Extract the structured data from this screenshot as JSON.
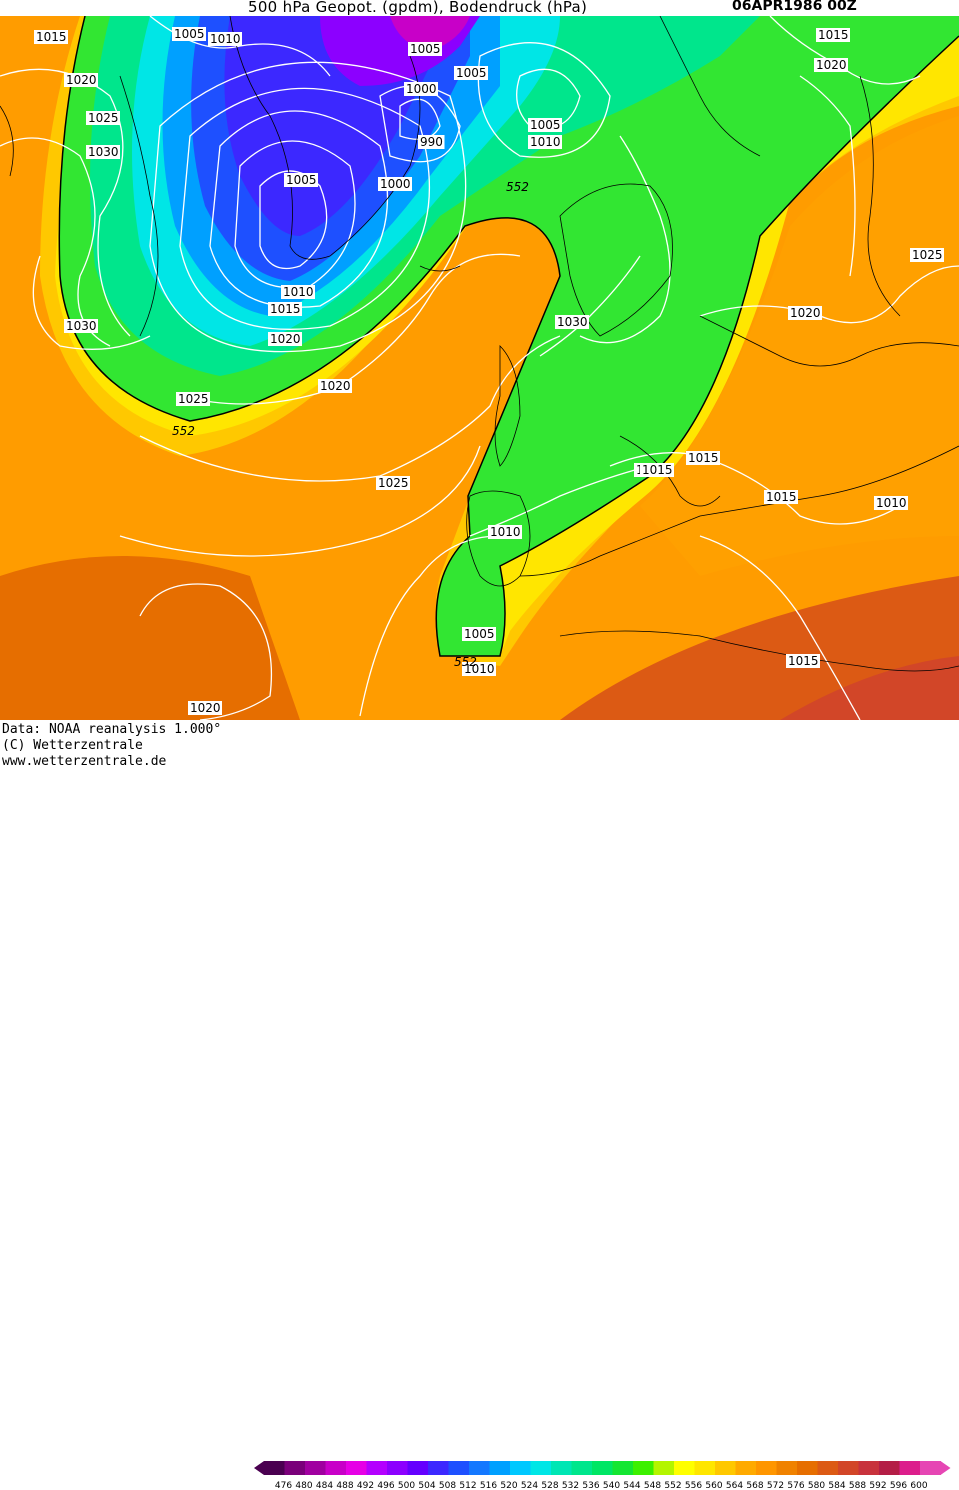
{
  "header": {
    "title": "500 hPa Geopot. (gpdm), Bodendruck (hPa)",
    "date": "06APR1986 00Z"
  },
  "footer": {
    "data_source": "Data: NOAA reanalysis 1.000°",
    "copyright": "(C) Wetterzentrale",
    "website": "www.wetterzentrale.de"
  },
  "colorbar": {
    "ticks": [
      "476",
      "480",
      "484",
      "488",
      "492",
      "496",
      "500",
      "504",
      "508",
      "512",
      "516",
      "520",
      "524",
      "528",
      "532",
      "536",
      "540",
      "544",
      "548",
      "552",
      "556",
      "560",
      "564",
      "568",
      "572",
      "576",
      "580",
      "584",
      "588",
      "592",
      "596",
      "600"
    ],
    "colors": [
      "#4a0050",
      "#7a007a",
      "#a000a0",
      "#c800c8",
      "#e600e6",
      "#b400ff",
      "#8c00ff",
      "#6400ff",
      "#3c28ff",
      "#1e50ff",
      "#1478ff",
      "#00a0ff",
      "#00c8ff",
      "#00e6e6",
      "#00e6b4",
      "#00e68c",
      "#00e664",
      "#14e632",
      "#3cf000",
      "#b4f500",
      "#ffff00",
      "#ffe600",
      "#ffc800",
      "#ffaa00",
      "#ff9600",
      "#f08200",
      "#e66e00",
      "#dc5a14",
      "#d24628",
      "#c8323c",
      "#b41e46",
      "#dc1e8c",
      "#e646b4"
    ]
  },
  "pressure_labels": [
    "1015",
    "1005",
    "1010",
    "1005",
    "1015",
    "1020",
    "1020",
    "1025",
    "1030",
    "1000",
    "1005",
    "990",
    "1010",
    "1005",
    "1005",
    "1000",
    "1010",
    "1015",
    "1020",
    "1030",
    "1025",
    "1030",
    "1020",
    "1025",
    "1015",
    "1015",
    "1020",
    "1025",
    "1010",
    "1005",
    "1010",
    "1015",
    "1015",
    "1010",
    "1015",
    "1020"
  ],
  "height_labels": [
    "552",
    "552",
    "552"
  ],
  "map_colors": {
    "bg_orange": "#ff9600",
    "deep_orange": "#e66e00",
    "yellow": "#ffd200",
    "green": "#32e632",
    "cyan": "#00c8ff",
    "blue": "#1e50ff",
    "violet": "#8c00ff"
  }
}
